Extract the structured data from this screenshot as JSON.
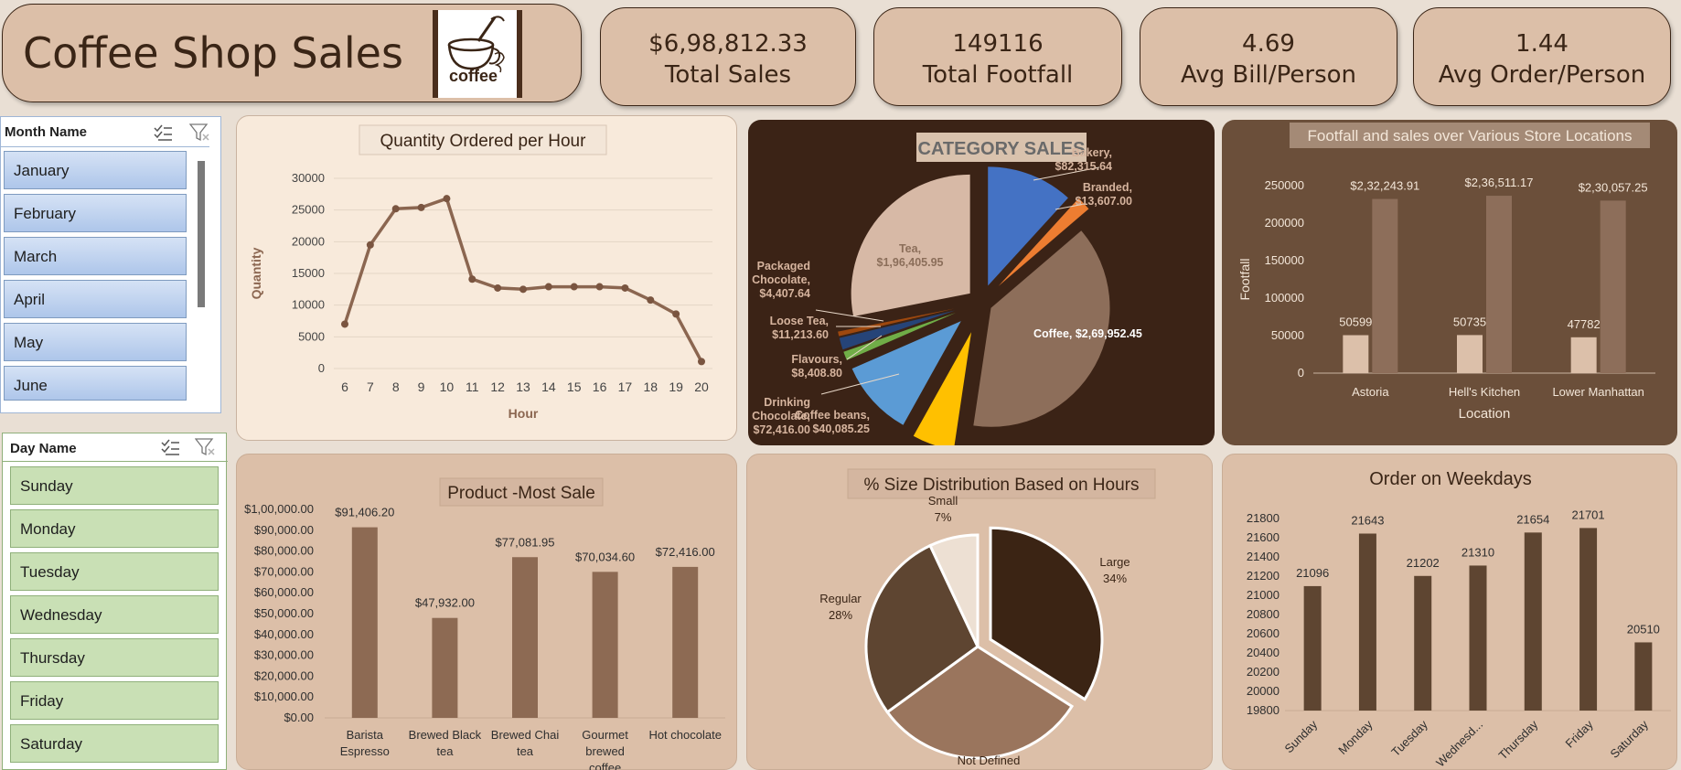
{
  "header": {
    "title": "Coffee Shop Sales",
    "logo_text": "coffee",
    "kpis": [
      {
        "value": "$6,98,812.33",
        "label": "Total Sales"
      },
      {
        "value": "149116",
        "label": "Total Footfall"
      },
      {
        "value": "4.69",
        "label": "Avg Bill/Person"
      },
      {
        "value": "1.44",
        "label": "Avg Order/Person"
      }
    ]
  },
  "month_slicer": {
    "title": "Month Name",
    "items": [
      "January",
      "February",
      "March",
      "April",
      "May",
      "June"
    ]
  },
  "day_slicer": {
    "title": "Day Name",
    "items": [
      "Sunday",
      "Monday",
      "Tuesday",
      "Wednesday",
      "Thursday",
      "Friday",
      "Saturday"
    ]
  },
  "colors": {
    "page_bg": "#e9dfd4",
    "card_bg": "#dcbfa8",
    "dark_brown": "#3a2516",
    "line_brown": "#8b6650",
    "bar_brown": "#8d6a53",
    "panel_light": "#f8eadb",
    "panel_dark": "#3b2316",
    "panel_mid": "#6b4f3a"
  },
  "chart_data": [
    {
      "id": "hourly",
      "type": "line",
      "title": "Quantity Ordered per Hour",
      "xlabel": "Hour",
      "ylabel": "Quantity",
      "x": [
        6,
        7,
        8,
        9,
        10,
        11,
        12,
        13,
        14,
        15,
        16,
        17,
        18,
        19,
        20
      ],
      "y": [
        7000,
        19500,
        25200,
        25400,
        26800,
        14100,
        12700,
        12500,
        12900,
        12900,
        12900,
        12700,
        10800,
        8600,
        1100
      ],
      "ylim": [
        0,
        30000
      ],
      "yticks": [
        0,
        5000,
        10000,
        15000,
        20000,
        25000,
        30000
      ],
      "grid": true
    },
    {
      "id": "category",
      "type": "pie",
      "title": "CATEGORY SALES",
      "slices": [
        {
          "name": "Bakery",
          "value": 82315.64,
          "label": "Bakery,\n$82,315.64",
          "color": "#4472c4"
        },
        {
          "name": "Branded",
          "value": 13607.0,
          "label": "Branded,\n$13,607.00",
          "color": "#ed7d31"
        },
        {
          "name": "Coffee",
          "value": 269952.45,
          "label": "Coffee, $2,69,952.45",
          "color": "#8d6e5a"
        },
        {
          "name": "Coffee beans",
          "value": 40085.25,
          "label": "Coffee beans,\n$40,085.25",
          "color": "#ffc000"
        },
        {
          "name": "Drinking Chocolate",
          "value": 72416.0,
          "label": "Drinking\nChocolate,\n$72,416.00",
          "color": "#5b9bd5"
        },
        {
          "name": "Flavours",
          "value": 8408.8,
          "label": "Flavours,\n$8,408.80",
          "color": "#70ad47"
        },
        {
          "name": "Loose Tea",
          "value": 11213.6,
          "label": "Loose Tea,\n$11,213.60",
          "color": "#264478"
        },
        {
          "name": "Packaged Chocolate",
          "value": 4407.64,
          "label": "Packaged\nChocolate,\n$4,407.64",
          "color": "#9e480e"
        },
        {
          "name": "Tea",
          "value": 196405.95,
          "label": "Tea,\n$1,96,405.95",
          "color": "#d7b9a6"
        }
      ]
    },
    {
      "id": "locations",
      "type": "bar",
      "title": "Footfall and sales over Various Store Locations",
      "xlabel": "Location",
      "ylabel": "Footfall",
      "categories": [
        "Astoria",
        "Hell's Kitchen",
        "Lower Manhattan"
      ],
      "series": [
        {
          "name": "",
          "values": [
            50599,
            50735,
            47782
          ],
          "labels": [
            "50599",
            "50735",
            "47782"
          ],
          "color": "#dcc0aa"
        },
        {
          "name": "",
          "values": [
            232243.91,
            236511.17,
            230057.25
          ],
          "labels": [
            "$2,32,243.91",
            "$2,36,511.17",
            "$2,30,057.25"
          ],
          "color": "#8d6e5a"
        }
      ],
      "ylim": [
        0,
        250000
      ],
      "yticks": [
        0,
        50000,
        100000,
        150000,
        200000,
        250000
      ]
    },
    {
      "id": "products",
      "type": "bar",
      "title": "Product -Most Sale",
      "categories": [
        "Barista Espresso",
        "Brewed Black tea",
        "Brewed Chai tea",
        "Gourmet brewed coffee",
        "Hot chocolate"
      ],
      "category_labels": [
        [
          "Barista",
          "Espresso"
        ],
        [
          "Brewed Black",
          "tea"
        ],
        [
          "Brewed Chai",
          "tea"
        ],
        [
          "Gourmet",
          "brewed",
          "coffee"
        ],
        [
          "Hot chocolate"
        ]
      ],
      "values": [
        91406.2,
        47932.0,
        77081.95,
        70034.6,
        72416.0
      ],
      "value_labels": [
        "$91,406.20",
        "$47,932.00",
        "$77,081.95",
        "$70,034.60",
        "$72,416.00"
      ],
      "ylim": [
        0,
        100000
      ],
      "yticks": [
        0,
        10000,
        20000,
        30000,
        40000,
        50000,
        60000,
        70000,
        80000,
        90000,
        100000
      ],
      "ytick_labels": [
        "$0.00",
        "$10,000.00",
        "$20,000.00",
        "$30,000.00",
        "$40,000.00",
        "$50,000.00",
        "$60,000.00",
        "$70,000.00",
        "$80,000.00",
        "$90,000.00",
        "$1,00,000.00"
      ]
    },
    {
      "id": "sizes",
      "type": "pie",
      "title": "% Size Distribution Based on Hours",
      "slices": [
        {
          "name": "Large",
          "value": 34,
          "label": "Large\n34%",
          "color": "#3b2414"
        },
        {
          "name": "Not Defined",
          "value": 31,
          "label": "Not Defined",
          "color": "#9a755d"
        },
        {
          "name": "Regular",
          "value": 28,
          "label": "Regular\n28%",
          "color": "#5e4531"
        },
        {
          "name": "Small",
          "value": 7,
          "label": "Small\n7%",
          "color": "#ede0d3"
        }
      ]
    },
    {
      "id": "weekdays",
      "type": "bar",
      "title": "Order on Weekdays",
      "categories": [
        "Sunday",
        "Monday",
        "Tuesday",
        "Wednesd...",
        "Thursday",
        "Friday",
        "Saturday"
      ],
      "values": [
        21096,
        21643,
        21202,
        21310,
        21654,
        21701,
        20510
      ],
      "ylim": [
        19800,
        21800
      ],
      "yticks": [
        19800,
        20000,
        20200,
        20400,
        20600,
        20800,
        21000,
        21200,
        21400,
        21600,
        21800
      ]
    }
  ]
}
